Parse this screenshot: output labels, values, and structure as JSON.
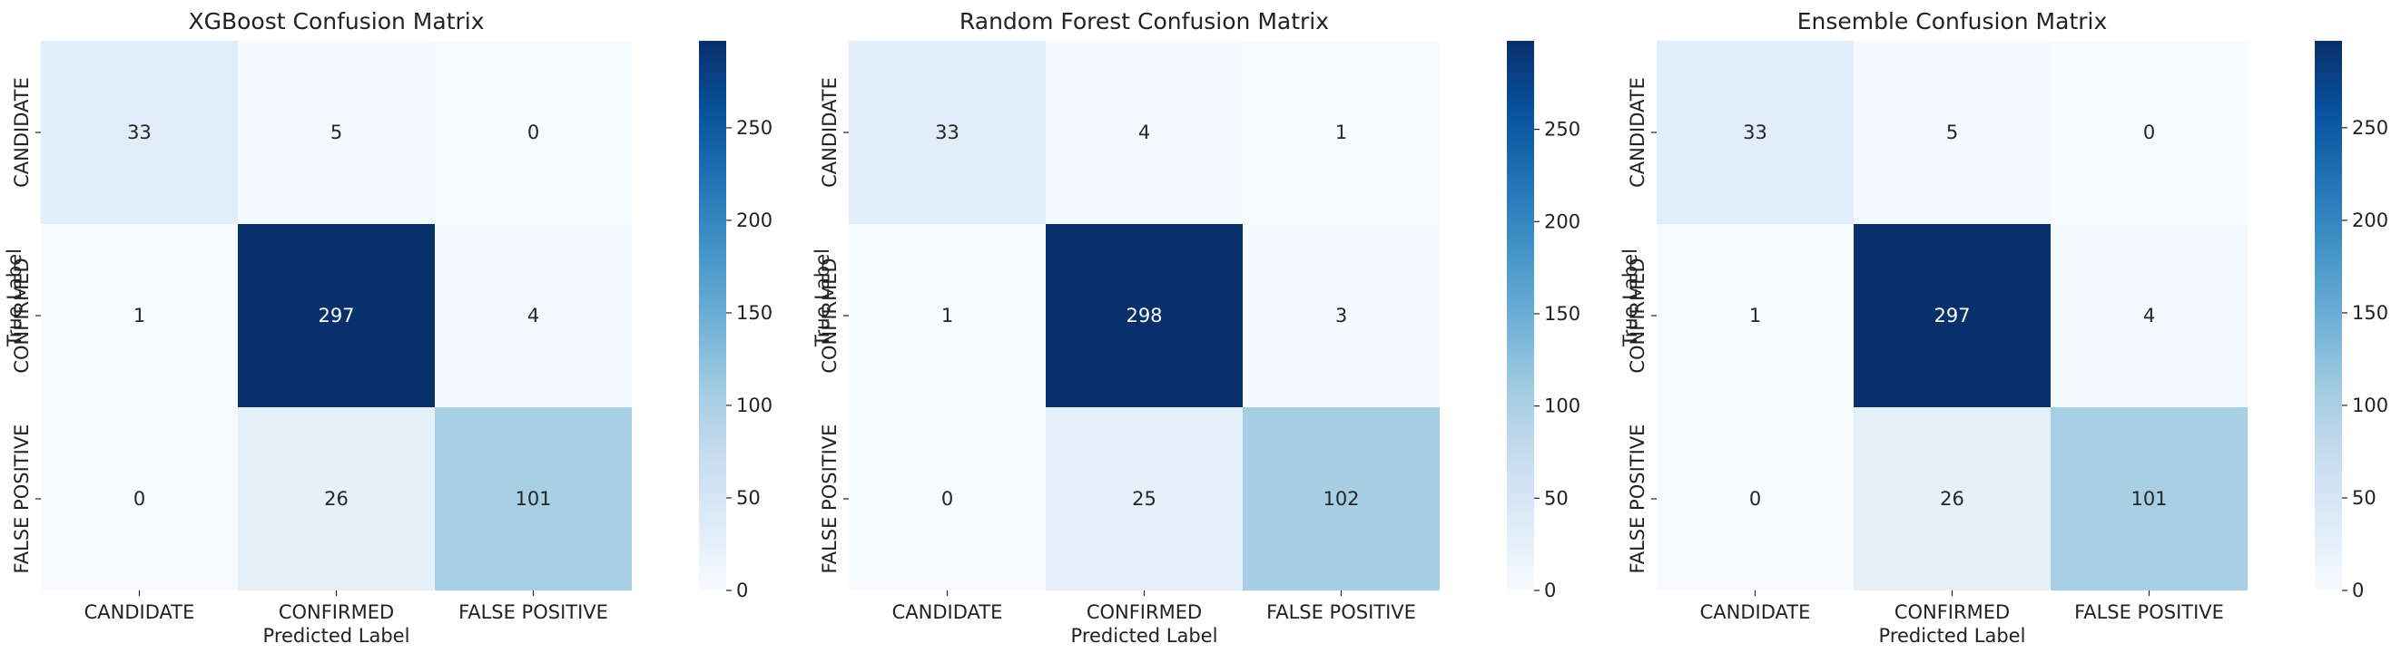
{
  "chart_data": [
    {
      "type": "heatmap",
      "title": "XGBoost Confusion Matrix",
      "xlabel": "Predicted Label",
      "ylabel": "True Label",
      "x_categories": [
        "CANDIDATE",
        "CONFIRMED",
        "FALSE POSITIVE"
      ],
      "y_categories": [
        "CANDIDATE",
        "CONFIRMED",
        "FALSE POSITIVE"
      ],
      "values": [
        [
          33,
          5,
          0
        ],
        [
          1,
          297,
          4
        ],
        [
          0,
          26,
          101
        ]
      ],
      "colorbar": {
        "min": 0,
        "max": 297,
        "ticks": [
          0,
          50,
          100,
          150,
          200,
          250
        ]
      },
      "colormap": "Blues"
    },
    {
      "type": "heatmap",
      "title": "Random Forest Confusion Matrix",
      "xlabel": "Predicted Label",
      "ylabel": "True Label",
      "x_categories": [
        "CANDIDATE",
        "CONFIRMED",
        "FALSE POSITIVE"
      ],
      "y_categories": [
        "CANDIDATE",
        "CONFIRMED",
        "FALSE POSITIVE"
      ],
      "values": [
        [
          33,
          4,
          1
        ],
        [
          1,
          298,
          3
        ],
        [
          0,
          25,
          102
        ]
      ],
      "colorbar": {
        "min": 0,
        "max": 298,
        "ticks": [
          0,
          50,
          100,
          150,
          200,
          250
        ]
      },
      "colormap": "Blues"
    },
    {
      "type": "heatmap",
      "title": "Ensemble Confusion Matrix",
      "xlabel": "Predicted Label",
      "ylabel": "True Label",
      "x_categories": [
        "CANDIDATE",
        "CONFIRMED",
        "FALSE POSITIVE"
      ],
      "y_categories": [
        "CANDIDATE",
        "CONFIRMED",
        "FALSE POSITIVE"
      ],
      "values": [
        [
          33,
          5,
          0
        ],
        [
          1,
          297,
          4
        ],
        [
          0,
          26,
          101
        ]
      ],
      "colorbar": {
        "min": 0,
        "max": 297,
        "ticks": [
          0,
          50,
          100,
          150,
          200,
          250
        ]
      },
      "colormap": "Blues"
    }
  ]
}
